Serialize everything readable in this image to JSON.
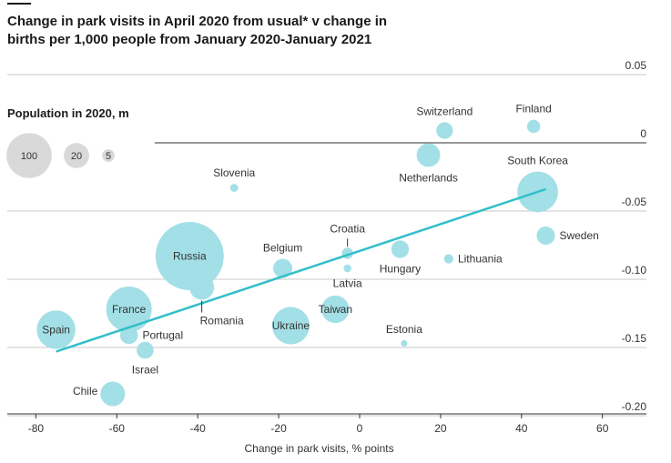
{
  "chart_data": {
    "type": "scatter",
    "title": "Change in park visits in April 2020 from usual* v change in births per 1,000 people from January 2020-January 2021",
    "xlabel": "Change in park visits, % points",
    "ylabel": "",
    "xlim": [
      -84,
      66
    ],
    "ylim": [
      -0.205,
      0.06
    ],
    "x_ticks": [
      -80,
      -60,
      -40,
      -20,
      0,
      20,
      40,
      60
    ],
    "y_ticks": [
      0.05,
      0,
      -0.05,
      -0.1,
      -0.15,
      -0.2
    ],
    "y_tick_labels": [
      "0.05",
      "0",
      "-0.05",
      "-0.10",
      "-0.15",
      "-0.20"
    ],
    "size_legend": {
      "title": "Population in 2020, m",
      "entries": [
        {
          "label": "100",
          "value": 100
        },
        {
          "label": "20",
          "value": 20
        },
        {
          "label": "5",
          "value": 5
        }
      ]
    },
    "points": [
      {
        "name": "Spain",
        "x": -75,
        "y": -0.137,
        "pop": 47,
        "label": "Spain",
        "label_pos": "center"
      },
      {
        "name": "Chile",
        "x": -61,
        "y": -0.184,
        "pop": 19,
        "label": "Chile",
        "label_pos": "left"
      },
      {
        "name": "France",
        "x": -57,
        "y": -0.122,
        "pop": 65,
        "label": "France",
        "label_pos": "center"
      },
      {
        "name": "Portugal",
        "x": -57,
        "y": -0.141,
        "pop": 10,
        "label": "Portugal",
        "label_pos": "right"
      },
      {
        "name": "Israel",
        "x": -53,
        "y": -0.152,
        "pop": 9,
        "label": "Israel",
        "label_pos": "below"
      },
      {
        "name": "Russia",
        "x": -42,
        "y": -0.083,
        "pop": 146,
        "label": "Russia",
        "label_pos": "center"
      },
      {
        "name": "Romania",
        "x": -39,
        "y": -0.106,
        "pop": 19,
        "label": "Romania",
        "label_pos": "below-leader"
      },
      {
        "name": "Slovenia",
        "x": -31,
        "y": -0.033,
        "pop": 2,
        "label": "Slovenia",
        "label_pos": "above"
      },
      {
        "name": "Belgium",
        "x": -19,
        "y": -0.092,
        "pop": 11.5,
        "label": "Belgium",
        "label_pos": "above"
      },
      {
        "name": "Ukraine",
        "x": -17,
        "y": -0.134,
        "pop": 44,
        "label": "Ukraine",
        "label_pos": "center"
      },
      {
        "name": "Taiwan",
        "x": -6,
        "y": -0.122,
        "pop": 24,
        "label": "Taiwan",
        "label_pos": "center"
      },
      {
        "name": "Croatia",
        "x": -3,
        "y": -0.081,
        "pop": 4,
        "label": "Croatia",
        "label_pos": "above-leader"
      },
      {
        "name": "Latvia",
        "x": -3,
        "y": -0.092,
        "pop": 1.9,
        "label": "Latvia",
        "label_pos": "below"
      },
      {
        "name": "Hungary",
        "x": 10,
        "y": -0.078,
        "pop": 9.7,
        "label": "Hungary",
        "label_pos": "below"
      },
      {
        "name": "Estonia",
        "x": 11,
        "y": -0.147,
        "pop": 1.3,
        "label": "Estonia",
        "label_pos": "above"
      },
      {
        "name": "Netherlands",
        "x": 17,
        "y": -0.009,
        "pop": 17.4,
        "label": "Netherlands",
        "label_pos": "below"
      },
      {
        "name": "Switzerland",
        "x": 21,
        "y": 0.009,
        "pop": 8.7,
        "label": "Switzerland",
        "label_pos": "above"
      },
      {
        "name": "Lithuania",
        "x": 22,
        "y": -0.085,
        "pop": 2.8,
        "label": "Lithuania",
        "label_pos": "right"
      },
      {
        "name": "Finland",
        "x": 43,
        "y": 0.012,
        "pop": 5.5,
        "label": "Finland",
        "label_pos": "above"
      },
      {
        "name": "South Korea",
        "x": 44,
        "y": -0.036,
        "pop": 52,
        "label": "South Korea",
        "label_pos": "above"
      },
      {
        "name": "Sweden",
        "x": 46,
        "y": -0.068,
        "pop": 10.4,
        "label": "Sweden",
        "label_pos": "right"
      }
    ],
    "trend_line": {
      "x1": -75,
      "y1": -0.153,
      "x2": 46,
      "y2": -0.034
    },
    "colors": {
      "bubble": "#a3dfe6",
      "trend": "#2fbfcb",
      "legend_bubble": "#d9d9d9",
      "grid": "#c9c9c9",
      "zero_line": "#5a5a5a",
      "text": "#1a1a1a",
      "label": "#333333"
    }
  }
}
